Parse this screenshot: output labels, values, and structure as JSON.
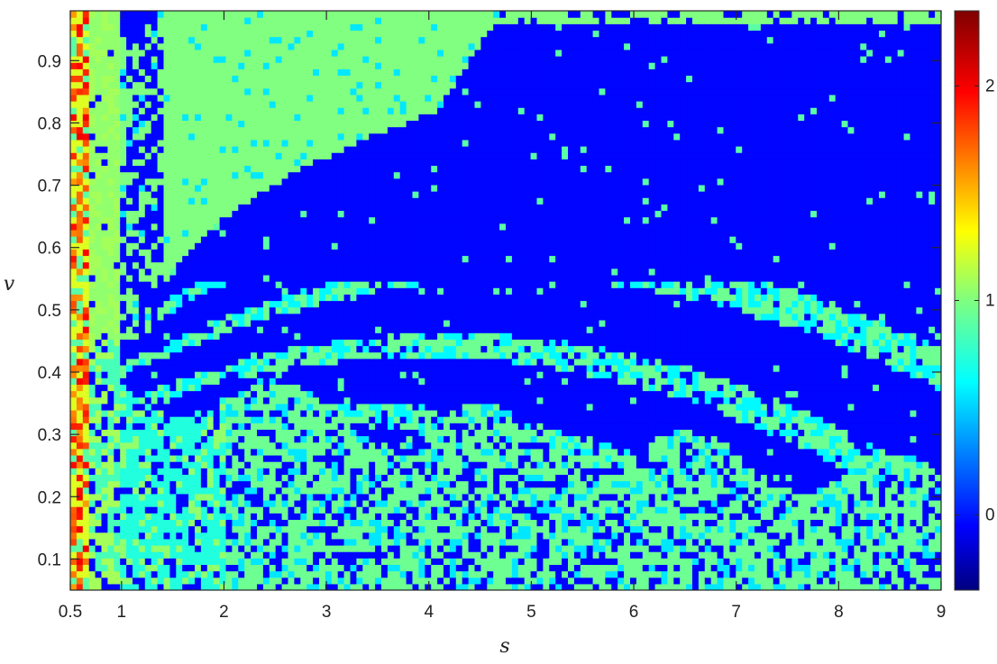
{
  "chart_data": {
    "type": "heatmap",
    "title": "",
    "xlabel": "s",
    "ylabel": "v",
    "xlim": [
      0.5,
      9
    ],
    "ylim": [
      0.05,
      0.98
    ],
    "x_ticks": [
      0.5,
      1,
      2,
      3,
      4,
      5,
      6,
      7,
      8,
      9
    ],
    "x_tick_labels": [
      "0.5",
      "1",
      "2",
      "3",
      "4",
      "5",
      "6",
      "7",
      "8",
      "9"
    ],
    "y_ticks": [
      0.1,
      0.2,
      0.3,
      0.4,
      0.5,
      0.6,
      0.7,
      0.8,
      0.9
    ],
    "y_tick_labels": [
      "0.1",
      "0.2",
      "0.3",
      "0.4",
      "0.5",
      "0.6",
      "0.7",
      "0.8",
      "0.9"
    ],
    "colorbar": {
      "colormap": "jet",
      "range": [
        -0.35,
        2.35
      ],
      "ticks": [
        0,
        1,
        2
      ],
      "tick_labels": [
        "0",
        "1",
        "2"
      ]
    },
    "regions": [
      {
        "value": 0.95,
        "s_range": [
          0.5,
          0.7
        ],
        "v_range": [
          0.05,
          0.7
        ],
        "note": "left strip (orange/yellow values)"
      },
      {
        "value": 1.0,
        "s_range": [
          1.3,
          2.5
        ],
        "v_range": [
          0.45,
          0.98
        ],
        "note": "upper-left light green wedge"
      },
      {
        "value": 0.0,
        "s_range": [
          2.5,
          9
        ],
        "v_range": [
          0.6,
          0.98
        ],
        "note": "upper-right blue region"
      },
      {
        "value": 0.9,
        "s_range": [
          2,
          9
        ],
        "v_range": [
          0.05,
          0.3
        ],
        "note": "lower speckled mixed region"
      }
    ],
    "grid": false
  }
}
